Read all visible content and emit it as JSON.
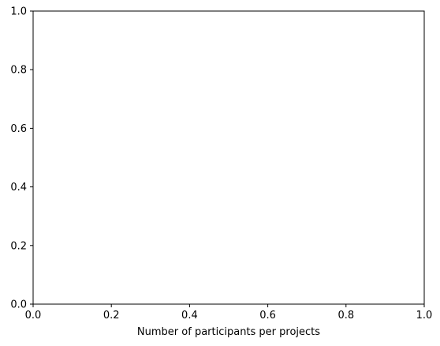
{
  "chart_data": {
    "type": "scatter",
    "title": "",
    "xlabel": "Number of participants per projects",
    "ylabel": "",
    "xlim": [
      0,
      1
    ],
    "ylim": [
      0,
      1
    ],
    "x_ticks": [
      {
        "value": 0.0,
        "label": "0.0"
      },
      {
        "value": 0.2,
        "label": "0.2"
      },
      {
        "value": 0.4,
        "label": "0.4"
      },
      {
        "value": 0.6,
        "label": "0.6"
      },
      {
        "value": 0.8,
        "label": "0.8"
      },
      {
        "value": 1.0,
        "label": "1.0"
      }
    ],
    "y_ticks": [
      {
        "value": 0.0,
        "label": "0.0"
      },
      {
        "value": 0.2,
        "label": "0.2"
      },
      {
        "value": 0.4,
        "label": "0.4"
      },
      {
        "value": 0.6,
        "label": "0.6"
      },
      {
        "value": 0.8,
        "label": "0.8"
      },
      {
        "value": 1.0,
        "label": "1.0"
      }
    ],
    "series": [],
    "grid": false,
    "legend": "none",
    "colors": {
      "axis": "#000000",
      "background": "#ffffff"
    }
  }
}
